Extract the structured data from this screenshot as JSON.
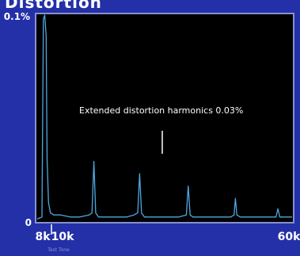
{
  "header": {
    "title": "Distortion"
  },
  "chart_data": {
    "type": "line",
    "title": "Distortion",
    "xlabel": "",
    "ylabel": "",
    "y_tick_labels": [
      "0.1%",
      "0"
    ],
    "x_tick_labels": [
      "8k",
      "10k",
      "60k"
    ],
    "x_sublabel": "Test Tone",
    "annotation": "Extended distortion harmonics 0.03%",
    "xlim": [
      8,
      62
    ],
    "ylim": [
      0,
      0.1
    ],
    "grid": false,
    "series": [
      {
        "x": [
          8,
          9,
          9.3,
          9.6,
          9.9,
          10.1,
          10.4,
          10.8,
          11.5,
          13,
          15,
          17,
          19,
          19.6,
          20,
          20.4,
          21,
          23,
          25,
          27,
          28.5,
          29.3,
          29.7,
          30.1,
          30.7,
          32,
          34,
          36,
          38,
          39.6,
          40,
          40.4,
          41,
          43,
          45,
          47,
          49,
          49.7,
          50,
          50.3,
          51,
          53,
          55,
          57,
          58.6,
          59,
          59.4,
          60,
          62
        ],
        "y": [
          0.001,
          0.002,
          0.098,
          0.1,
          0.09,
          0.03,
          0.009,
          0.004,
          0.003,
          0.003,
          0.002,
          0.002,
          0.003,
          0.004,
          0.029,
          0.004,
          0.002,
          0.002,
          0.002,
          0.002,
          0.003,
          0.004,
          0.023,
          0.004,
          0.002,
          0.002,
          0.002,
          0.002,
          0.002,
          0.003,
          0.017,
          0.003,
          0.002,
          0.002,
          0.002,
          0.002,
          0.002,
          0.003,
          0.011,
          0.003,
          0.002,
          0.002,
          0.002,
          0.002,
          0.002,
          0.006,
          0.002,
          0.002,
          0.002
        ],
        "color": "#4ea8e0"
      }
    ],
    "colors": {
      "background": "#2430a8",
      "plot_area": "#000000",
      "trace": "#4ea8e0",
      "frame": "#8890d0"
    }
  }
}
